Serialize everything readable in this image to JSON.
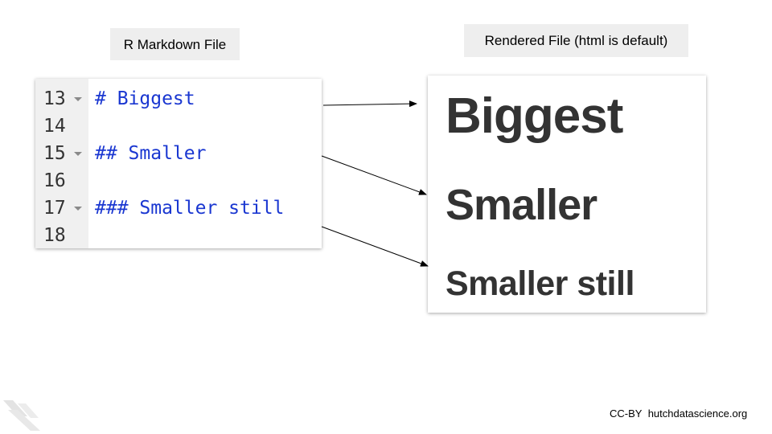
{
  "labels": {
    "left": "R Markdown File",
    "right": "Rendered File (html is default)"
  },
  "editor": {
    "lines": [
      {
        "number": "13",
        "text": "# Biggest",
        "foldable": true
      },
      {
        "number": "14",
        "text": "",
        "foldable": false
      },
      {
        "number": "15",
        "text": "## Smaller",
        "foldable": true
      },
      {
        "number": "16",
        "text": "",
        "foldable": false
      },
      {
        "number": "17",
        "text": "### Smaller still",
        "foldable": true
      },
      {
        "number": "18",
        "text": "",
        "foldable": false
      }
    ]
  },
  "rendered": {
    "h1": "Biggest",
    "h2": "Smaller",
    "h3": "Smaller still"
  },
  "footer": {
    "license": "CC-BY",
    "site": "hutchdatascience.org"
  },
  "colors": {
    "code_text": "#1a37d1",
    "heading_text": "#333333",
    "label_bg": "#eeeeee",
    "gutter_bg": "#f0f0f0"
  }
}
